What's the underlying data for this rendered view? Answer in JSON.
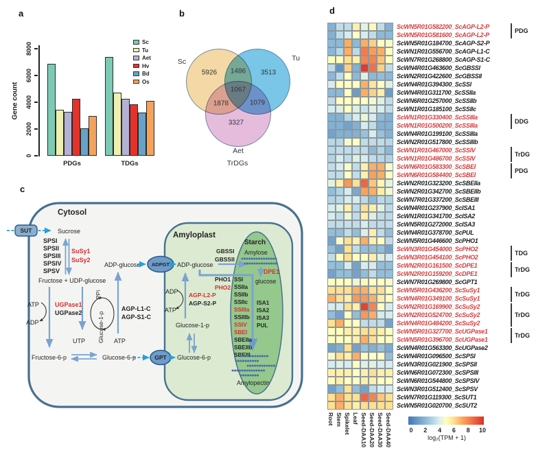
{
  "figure": {
    "panels": {
      "a": "a",
      "b": "b",
      "c": "c",
      "d": "d"
    }
  },
  "chart_data": [
    {
      "type": "bar",
      "panel": "a",
      "categories": [
        "PDGs",
        "TDGs"
      ],
      "series": [
        {
          "name": "Sc",
          "color": "#7dcab4",
          "values": [
            6850,
            7400
          ]
        },
        {
          "name": "Tu",
          "color": "#eff0b0",
          "values": [
            3450,
            4700
          ]
        },
        {
          "name": "Aet",
          "color": "#b3b1d4",
          "values": [
            3280,
            4250
          ]
        },
        {
          "name": "Hv",
          "color": "#e63329",
          "values": [
            4250,
            3850
          ]
        },
        {
          "name": "Bd",
          "color": "#68a2c6",
          "values": [
            2050,
            3230
          ]
        },
        {
          "name": "Os",
          "color": "#f5a25b",
          "values": [
            3000,
            4100
          ]
        }
      ],
      "ylabel": "Gene count",
      "ylim": [
        0,
        8000
      ],
      "yticks": [
        0,
        2000,
        4000,
        6000,
        8000
      ],
      "legend_position": "upper right",
      "grid": false
    },
    {
      "type": "venn",
      "panel": "b",
      "sets": [
        "Sc",
        "Tu",
        "Aet"
      ],
      "subtitle": "TrDGs",
      "regions": {
        "sc_only": "5926",
        "sc_tu": "1486",
        "tu_only": "3513",
        "sc_tu_aet": "1067",
        "sc_aet": "1878",
        "tu_aet": "1079",
        "aet_only": "3327"
      },
      "colors": {
        "sc": "#f4d9a6",
        "tu": "#79c6e8",
        "aet": "#e6bcdd"
      }
    },
    {
      "type": "heatmap",
      "panel": "d",
      "columns": [
        "Root",
        "Stem",
        "Spikelet",
        "Leaf",
        "Seed-DAA10",
        "Seed-DAA20",
        "Seed-DAA30",
        "Seed-DAA40"
      ],
      "rows": [
        {
          "gene": "ScWN5R01G582200_ScAGP-L2-P",
          "red": true,
          "values": [
            2,
            3.5,
            3.5,
            5.5,
            4.3,
            5.2,
            3.5,
            2
          ]
        },
        {
          "gene": "ScWN5R01G581600_ScAGP-L2-P",
          "red": true,
          "values": [
            2,
            3.5,
            4,
            5,
            4,
            3.5,
            2.3,
            2.3
          ]
        },
        {
          "gene": "ScWN5R01G184700_ScAGP-S2-P",
          "red": false,
          "values": [
            2.3,
            2.3,
            7,
            2.3,
            7,
            6.3,
            5,
            4.8
          ]
        },
        {
          "gene": "ScWN1R01G556700_ScAGP-L1-C",
          "red": false,
          "values": [
            2.3,
            3.3,
            7,
            3.4,
            8.2,
            7.4,
            7,
            5
          ]
        },
        {
          "gene": "ScWN7R01G268800_ScAGP-S1-C",
          "red": false,
          "values": [
            5,
            5,
            6,
            5.5,
            8,
            8,
            6.6,
            5
          ]
        },
        {
          "gene": "ScWN4R01G463600_ScGBSSI",
          "red": false,
          "values": [
            3.5,
            1,
            6.3,
            2,
            9.7,
            8.4,
            6.3,
            3.5
          ]
        },
        {
          "gene": "ScWN2R01G422600_ScGBSSII",
          "red": false,
          "values": [
            2.3,
            3.5,
            5,
            2.3,
            4.2,
            2.3,
            2.5,
            2.3
          ]
        },
        {
          "gene": "ScWN4R01G394300_ScSSI",
          "red": false,
          "values": [
            4,
            5,
            5,
            5,
            7,
            5.8,
            5,
            4.2
          ]
        },
        {
          "gene": "ScWN4R01G311700_ScSSIIa",
          "red": false,
          "values": [
            2.3,
            2.3,
            5,
            1.3,
            7,
            6.3,
            5.5,
            1.3
          ]
        },
        {
          "gene": "ScWN6R01G257000_ScSSIIb",
          "red": false,
          "values": [
            3.5,
            5,
            5,
            5,
            5,
            4.7,
            4.2,
            3.5
          ]
        },
        {
          "gene": "ScWN1R01G185100_ScSSIIc",
          "red": false,
          "values": [
            4,
            4.2,
            5,
            4.2,
            3.7,
            4.2,
            4,
            3.5
          ]
        },
        {
          "gene": "ScWN1R01G330400_ScSSIIIa",
          "red": true,
          "values": [
            2,
            2,
            3.3,
            4,
            4.5,
            4,
            2.4,
            2
          ]
        },
        {
          "gene": "ScWN1R01G500200_ScSSIIIa",
          "red": true,
          "values": [
            2,
            2,
            1.5,
            2,
            4,
            3.5,
            2,
            2
          ]
        },
        {
          "gene": "ScWN4R01G199100_ScSSIIIa",
          "red": false,
          "values": [
            1.5,
            2,
            2,
            2,
            2.6,
            4,
            2.6,
            2
          ]
        },
        {
          "gene": "ScWN2R01G517800_ScSSIIIb",
          "red": false,
          "values": [
            3.3,
            3.3,
            4.7,
            5,
            3.5,
            3.5,
            3.5,
            3.3
          ]
        },
        {
          "gene": "ScWN1R01G467000_ScSSIV",
          "red": true,
          "values": [
            3.3,
            3.5,
            3.5,
            3.5,
            3.5,
            2.3,
            3.2,
            2.3
          ]
        },
        {
          "gene": "ScWN1R01G486700_ScSSIV",
          "red": true,
          "values": [
            3.2,
            4,
            3.5,
            4.2,
            4,
            3.5,
            3.3,
            3.2
          ]
        },
        {
          "gene": "ScWN6R01G583300_ScSBEI",
          "red": true,
          "values": [
            3.5,
            4,
            4.8,
            3.5,
            5.5,
            7,
            7,
            4.8
          ]
        },
        {
          "gene": "ScWN6R01G584400_ScSBEI",
          "red": true,
          "values": [
            3.5,
            3.5,
            5,
            3.5,
            5.5,
            7.3,
            7,
            5
          ]
        },
        {
          "gene": "ScWN2R01G323200_ScSBEIIa",
          "red": false,
          "values": [
            4.3,
            5.5,
            7.5,
            6,
            8.7,
            6.5,
            5.3,
            4.3
          ]
        },
        {
          "gene": "ScWN2R01G342700_ScSBEIIb",
          "red": false,
          "values": [
            2.5,
            3.2,
            4,
            1.7,
            7.3,
            7,
            5.5,
            4.7
          ]
        },
        {
          "gene": "ScWN7R01G337200_ScSBEIII",
          "red": false,
          "values": [
            3.2,
            3.4,
            4,
            4,
            3.4,
            2.4,
            3.4,
            3.2
          ]
        },
        {
          "gene": "ScWN4R01G237900_ScISA1",
          "red": false,
          "values": [
            4,
            4.3,
            5.5,
            3.4,
            6,
            5.5,
            4.3,
            3.4
          ]
        },
        {
          "gene": "ScWN1R01G341700_ScISA2",
          "red": false,
          "values": [
            4,
            3.5,
            4.6,
            3.5,
            5.5,
            4.2,
            3.5,
            3.4
          ]
        },
        {
          "gene": "ScWN5R01G272000_ScISA3",
          "red": false,
          "values": [
            3.5,
            3.5,
            3.6,
            3.5,
            4,
            3.5,
            3.5,
            3.5
          ]
        },
        {
          "gene": "ScWN4R01G378700_ScPUL",
          "red": false,
          "values": [
            2.5,
            2.5,
            3.5,
            2.5,
            4.2,
            5.5,
            3.5,
            2.5
          ]
        },
        {
          "gene": "ScWN5R01G446600_ScPHO1",
          "red": false,
          "values": [
            1.5,
            4.8,
            6,
            5.5,
            7,
            5.5,
            5,
            3.5
          ]
        },
        {
          "gene": "ScWN3R01G454000_ScPHO2",
          "red": true,
          "values": [
            2.5,
            1.5,
            6,
            3.5,
            2.5,
            2.5,
            2.5,
            1.5
          ]
        },
        {
          "gene": "ScWN3R01G454100_ScPHO2",
          "red": true,
          "values": [
            3.5,
            5,
            6,
            5,
            5,
            5.5,
            4.2,
            4
          ]
        },
        {
          "gene": "ScWN2R01G161500_ScDPE1",
          "red": true,
          "values": [
            2.5,
            2.5,
            4,
            1.5,
            4,
            4,
            2.5,
            2.5
          ]
        },
        {
          "gene": "ScWN2R01G159200_ScDPE1",
          "red": true,
          "values": [
            1.5,
            2.5,
            2.5,
            1.5,
            2.5,
            3.5,
            2.5,
            2.5
          ]
        },
        {
          "gene": "ScWN7R01G269800_ScGPT1",
          "red": false,
          "values": [
            5,
            5,
            5,
            4.5,
            5.2,
            5,
            5,
            4.8
          ]
        },
        {
          "gene": "ScWN5R01G436200_ScSuSy1",
          "red": true,
          "values": [
            6,
            6,
            6,
            7,
            7,
            6,
            6,
            5
          ]
        },
        {
          "gene": "ScWN4R01G349100_ScSuSy1",
          "red": true,
          "values": [
            7,
            6,
            5.5,
            7.5,
            7.5,
            7,
            5.5,
            5
          ]
        },
        {
          "gene": "ScWN2R01G169900_ScSuSy2",
          "red": true,
          "values": [
            4,
            4,
            6,
            5.5,
            9.5,
            8,
            5,
            4
          ]
        },
        {
          "gene": "ScWN2R01G524700_ScSuSy2",
          "red": true,
          "values": [
            2.5,
            1.5,
            5,
            2.5,
            7.5,
            7,
            4,
            4
          ]
        },
        {
          "gene": "ScWN4R01G484200_ScSuSy2",
          "red": true,
          "values": [
            6,
            7,
            5,
            5,
            3.5,
            3.5,
            3.5,
            1.5
          ]
        },
        {
          "gene": "ScWN5R01G327700_ScUGPase1",
          "red": true,
          "values": [
            5,
            5,
            5.5,
            5.5,
            6,
            6,
            5.5,
            5
          ]
        },
        {
          "gene": "ScWN5R01G396700_ScUGPase1",
          "red": true,
          "values": [
            5,
            5,
            5,
            5.5,
            7,
            6,
            5,
            5
          ]
        },
        {
          "gene": "ScWN4R01G563300_ScUGPase2",
          "red": false,
          "values": [
            1.5,
            2,
            6,
            1.5,
            2.6,
            2,
            2.6,
            1.8
          ]
        },
        {
          "gene": "ScWN4R01G096500_ScSPSI",
          "red": false,
          "values": [
            4.8,
            6,
            5.5,
            7,
            5,
            5,
            5,
            2.5
          ]
        },
        {
          "gene": "ScWN3R01G021900_ScSPSII",
          "red": false,
          "values": [
            4,
            4.2,
            4,
            5,
            4.2,
            4.3,
            4,
            4
          ]
        },
        {
          "gene": "ScWN6R01G072300_ScSPSIII",
          "red": false,
          "values": [
            5.5,
            5.5,
            5.5,
            5,
            5.5,
            6,
            5.5,
            5.5
          ]
        },
        {
          "gene": "ScWN6R01G544800_ScSPSIV",
          "red": false,
          "values": [
            5,
            5.5,
            5,
            5,
            5.5,
            5.5,
            5,
            5
          ]
        },
        {
          "gene": "ScWN3R01G512400_ScSPSV",
          "red": false,
          "values": [
            1.5,
            2.5,
            6,
            2.5,
            1.5,
            3.5,
            4,
            4
          ]
        },
        {
          "gene": "ScWN7R01G119300_ScSUT1",
          "red": false,
          "values": [
            6,
            7,
            6,
            6,
            8.7,
            8,
            6.5,
            6
          ]
        },
        {
          "gene": "ScWN5R01G020700_ScSUT2",
          "red": false,
          "values": [
            6,
            7,
            6,
            5.5,
            6,
            6,
            6,
            6
          ]
        }
      ],
      "groups": [
        {
          "start": 1,
          "end": 2,
          "label": "PDG"
        },
        {
          "start": 12,
          "end": 13,
          "label": "DDG"
        },
        {
          "start": 16,
          "end": 17,
          "label": "TrDG"
        },
        {
          "start": 18,
          "end": 19,
          "label": "PDG"
        },
        {
          "start": 28,
          "end": 29,
          "label": "TDG"
        },
        {
          "start": 30,
          "end": 31,
          "label": "TrDG"
        },
        {
          "start": 33,
          "end": 34,
          "label": "TrDG"
        },
        {
          "start": 35,
          "end": 37,
          "label": "TrDG"
        },
        {
          "start": 38,
          "end": 39,
          "label": "TrDG"
        }
      ],
      "colorbar": {
        "min": 0,
        "max": 10,
        "ticks": [
          0,
          2,
          4,
          6,
          8,
          10
        ],
        "label": "log₂(TPM + 1)"
      }
    }
  ],
  "panel_c": {
    "cytosol": "Cytosol",
    "amyloplast": "Amyloplast",
    "starch": "Starch",
    "sut": "SUT",
    "adpgt": "ADPGT",
    "gpt": "GPT",
    "sucrose": "Sucrose",
    "sps_list": [
      "SPSI",
      "SPSII",
      "SPSIII",
      "SPSIV",
      "SPSV"
    ],
    "susy1": "SuSy1",
    "susy2": "SuSy2",
    "fructose_udp": "Fructose  +  UDP-glucose",
    "atp": "ATP",
    "adp": "ADP",
    "utp": "UTP",
    "ppi": "PPi",
    "ugpase1": "UGPase1",
    "ugpase2": "UGPase2",
    "glucose_1_p": "Glucose-1-p",
    "agp_l1c": "AGP-L1-C",
    "agp_s1c": "AGP-S1-C",
    "adp_glucose": "ADP-glucose",
    "fructose_6_p": "Fructose-6-p",
    "glucose_6_p": "Glucose-6-p",
    "agp_l2p": "AGP-L2-P",
    "agp_s2p": "AGP-S2-P",
    "gbssi": "GBSSI",
    "gbssii": "GBSSII",
    "pho1": "PHO1",
    "pho2": "PHO2",
    "dpe1": "DPE1",
    "glucose": "glucose",
    "amylose": "Amylose",
    "amylopectin": "Amylopectin",
    "ss_list": [
      "SSI",
      "SSIIa",
      "SSIIb",
      "SSIIc",
      "SSIIIa",
      "SSIIIb",
      "SSIV",
      "SBEI",
      "SBEIIa",
      "SBEIIb",
      "SBEIII"
    ],
    "isa_list": [
      "ISA1",
      "ISA2",
      "ISA3",
      "PUL"
    ]
  }
}
